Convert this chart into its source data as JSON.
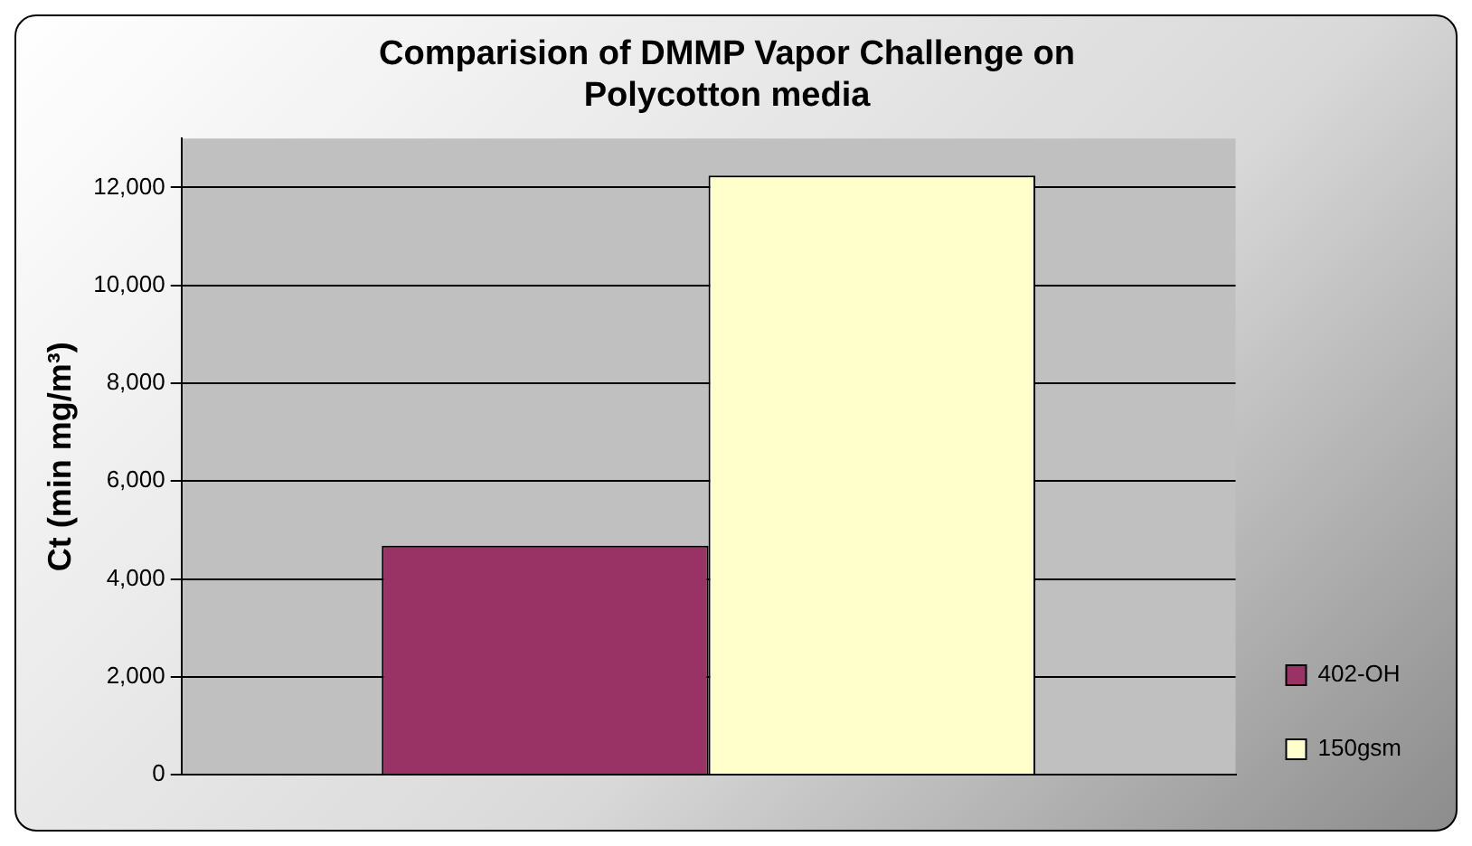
{
  "chart_data": {
    "type": "bar",
    "title": [
      "Comparision of DMMP Vapor Challenge on",
      "Polycotton media"
    ],
    "ylabel": "Ct (min mg/m³)",
    "categories": [
      null
    ],
    "series": [
      {
        "name": "402-OH",
        "color": "#993366",
        "values": [
          4680
        ]
      },
      {
        "name": "150gsm",
        "color": "#ffffcc",
        "values": [
          12240
        ]
      }
    ],
    "ylim": [
      0,
      13000
    ],
    "yticks": [
      {
        "value": 0,
        "label": "0"
      },
      {
        "value": 2000,
        "label": "2,000"
      },
      {
        "value": 4000,
        "label": "4,000"
      },
      {
        "value": 6000,
        "label": "6,000"
      },
      {
        "value": 8000,
        "label": "8,000"
      },
      {
        "value": 10000,
        "label": "10,000"
      },
      {
        "value": 12000,
        "label": "12,000"
      }
    ],
    "grid": "y",
    "legend": "right"
  }
}
